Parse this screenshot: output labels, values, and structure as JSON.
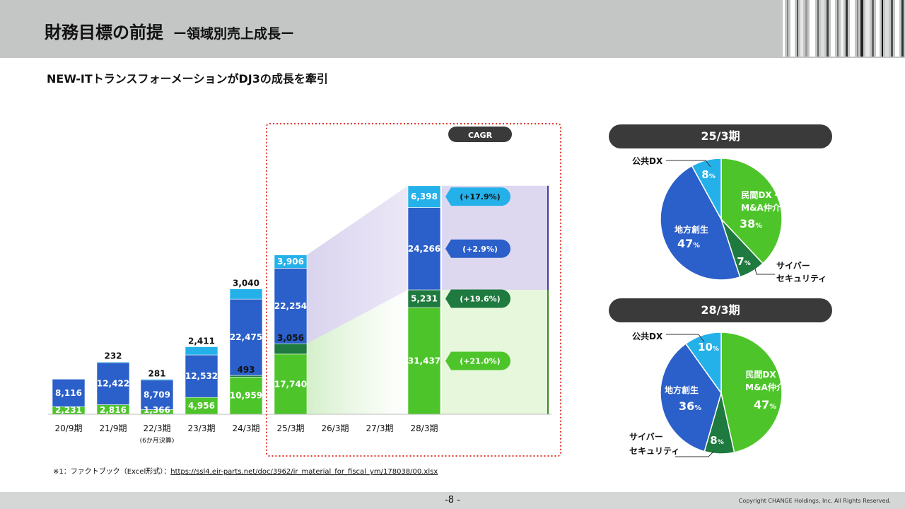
{
  "header": {
    "title": "財務目標の前提",
    "subtitle": "ー領域別売上成長ー"
  },
  "lead": "NEW-ITトランスフォーメーションがDJ3の成長を牽引",
  "chart_data": {
    "type": "bar",
    "stacked": true,
    "categories": [
      "20/9期",
      "21/9期",
      "22/3期",
      "23/3期",
      "24/3期",
      "25/3期",
      "26/3期",
      "27/3期",
      "28/3期"
    ],
    "category_notes": [
      "",
      "",
      "(6か月決算)",
      "",
      "",
      "",
      "",
      "",
      ""
    ],
    "series": [
      {
        "name": "",
        "color": "#4dc52a",
        "values": [
          2231,
          2816,
          1366,
          4956,
          10959,
          17740,
          null,
          null,
          31437
        ]
      },
      {
        "name": "",
        "color": "#1e7a3e",
        "values": [
          0,
          0,
          0,
          0,
          493,
          3056,
          null,
          null,
          5231
        ]
      },
      {
        "name": "",
        "color": "#2b5fc9",
        "values": [
          8116,
          12422,
          8709,
          12532,
          22475,
          22254,
          null,
          null,
          24266
        ]
      },
      {
        "name": "",
        "color": "#24b1ea",
        "values": [
          0,
          232,
          281,
          2411,
          3040,
          3906,
          null,
          null,
          6398
        ]
      }
    ],
    "data_labels": [
      [
        "2,231",
        "",
        "8,116",
        ""
      ],
      [
        "2,816",
        "",
        "12,422",
        "232"
      ],
      [
        "1,366",
        "",
        "8,709",
        "281"
      ],
      [
        "4,956",
        "",
        "12,532",
        "2,411"
      ],
      [
        "10,959",
        "493",
        "22,475",
        "3,040"
      ],
      [
        "17,740",
        "3,056",
        "22,254",
        "3,906"
      ],
      [
        "",
        "",
        "",
        ""
      ],
      [
        "",
        "",
        "",
        ""
      ],
      [
        "31,437",
        "5,231",
        "24,266",
        "6,398"
      ]
    ],
    "cagr_title": "CAGR",
    "cagr": [
      "(+21.0%)",
      "(+19.6%)",
      "(+2.9%)",
      "(+17.9%)"
    ],
    "ylim": [
      0,
      68000
    ]
  },
  "pies": [
    {
      "title": "25/3期",
      "slices": [
        {
          "label": "民間DX・M&A仲介",
          "value": 38,
          "color": "#4dc52a"
        },
        {
          "label": "サイバーセキュリティ",
          "value": 7,
          "color": "#1e7a3e"
        },
        {
          "label": "地方創生",
          "value": 47,
          "color": "#2b5fc9"
        },
        {
          "label": "公共DX",
          "value": 8,
          "color": "#24b1ea"
        }
      ],
      "texts": {
        "minkan1": "民間DX・",
        "minkan2": "M&A仲介",
        "minkan_val": "38",
        "chiho": "地方創生",
        "chiho_val": "47",
        "cyber_val": "7",
        "cyber1": "サイバー",
        "cyber2": "セキュリティ",
        "kokyo": "公共DX",
        "kokyo_val": "8",
        "pct": "%"
      }
    },
    {
      "title": "28/3期",
      "slices": [
        {
          "label": "民間DX・M&A仲介",
          "value": 47,
          "color": "#4dc52a"
        },
        {
          "label": "サイバーセキュリティ",
          "value": 8,
          "color": "#1e7a3e"
        },
        {
          "label": "地方創生",
          "value": 36,
          "color": "#2b5fc9"
        },
        {
          "label": "公共DX",
          "value": 10,
          "color": "#24b1ea"
        }
      ],
      "texts": {
        "minkan1": "民間DX・",
        "minkan2": "M&A仲介",
        "minkan_val": "47",
        "chiho": "地方創生",
        "chiho_val": "36",
        "cyber_val": "8",
        "cyber1": "サイバー",
        "cyber2": "セキュリティ",
        "kokyo": "公共DX",
        "kokyo_val": "10",
        "pct": "%"
      }
    }
  ],
  "footnote": {
    "prefix": "※1：ファクトブック（Excel形式）：",
    "link": "https://ssl4.eir-parts.net/doc/3962/ir_material_for_fiscal_ym/178038/00.xlsx"
  },
  "page_number": "-8 -",
  "copyright": "Copyright CHANGE Holdings, Inc. All Rights Reserved."
}
